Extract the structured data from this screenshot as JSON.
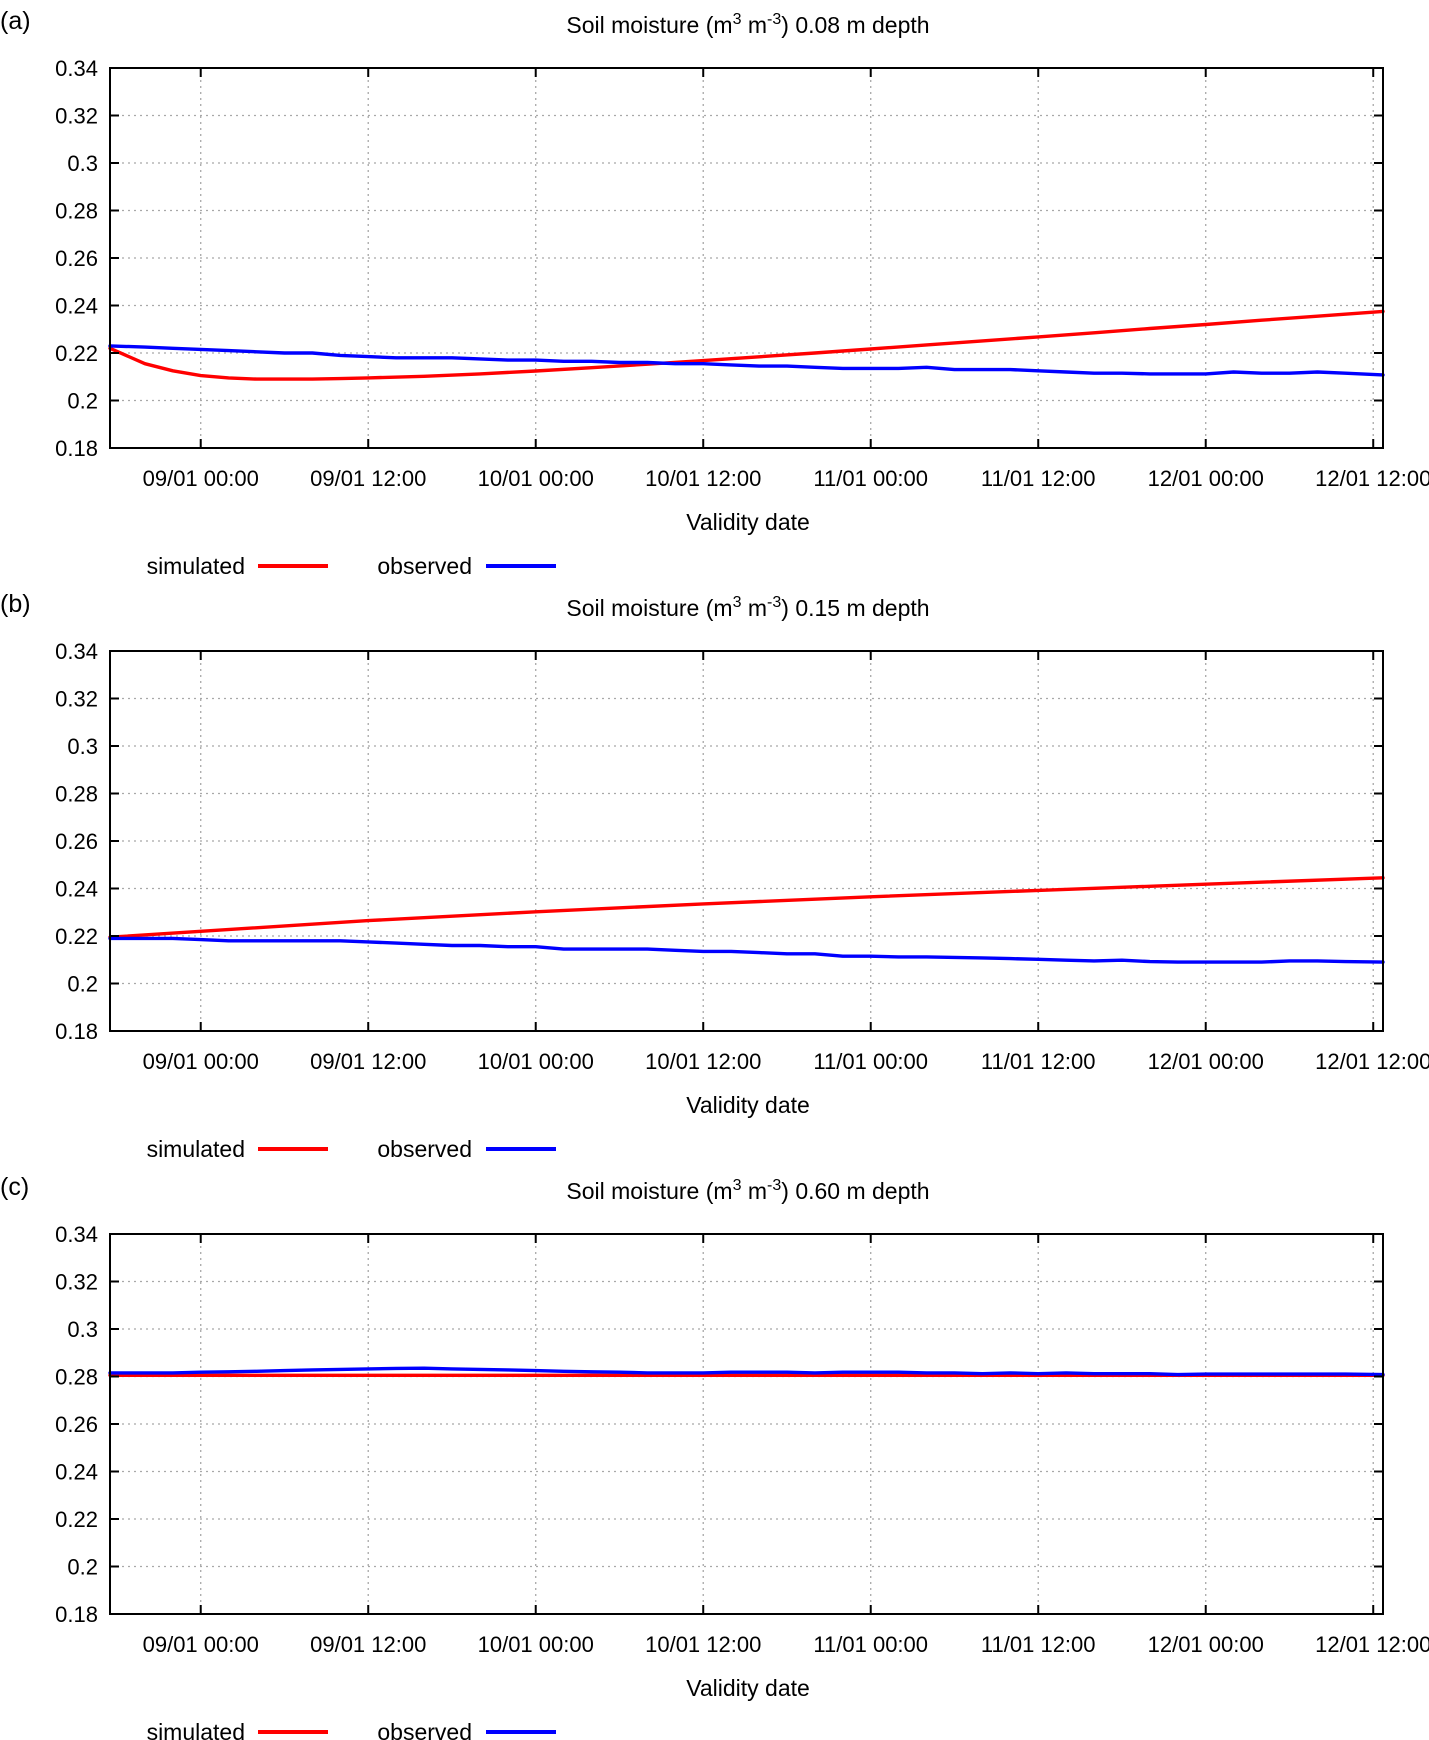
{
  "chart_data": [
    {
      "type": "line",
      "panel_label": "(a)",
      "title": "Soil moisture (m3 m-3) 0.08 m depth",
      "title_parts": {
        "prefix": "Soil moisture (m",
        "sup1": "3",
        "middle": " m",
        "sup2": "-3",
        "suffix": ") 0.08 m depth"
      },
      "xlabel": "Validity date",
      "ylabel": "",
      "x_ticks": [
        "09/01 00:00",
        "09/01 12:00",
        "10/01 00:00",
        "10/01 12:00",
        "11/01 00:00",
        "11/01 12:00",
        "12/01 00:00",
        "12/01 12:00"
      ],
      "y_ticks": [
        "0.34",
        "0.32",
        "0.3",
        "0.28",
        "0.26",
        "0.24",
        "0.22",
        "0.2",
        "0.18"
      ],
      "ylim": [
        0.18,
        0.34
      ],
      "xlim_hours": [
        -6.5,
        84.7
      ],
      "grid": true,
      "legend_position": "bottom-left",
      "series": [
        {
          "name": "simulated",
          "color": "#ff0000",
          "x": [
            -6.5,
            -4,
            -2,
            0,
            2,
            4,
            6,
            8,
            10,
            12,
            16,
            20,
            24,
            28,
            32,
            36,
            40,
            44,
            48,
            52,
            56,
            60,
            64,
            68,
            72,
            76,
            80,
            84.7
          ],
          "y": [
            0.222,
            0.2155,
            0.2125,
            0.2105,
            0.2095,
            0.209,
            0.209,
            0.209,
            0.2092,
            0.2095,
            0.2102,
            0.2112,
            0.2124,
            0.2138,
            0.2153,
            0.2168,
            0.2184,
            0.22,
            0.2217,
            0.2234,
            0.2251,
            0.2268,
            0.2285,
            0.2303,
            0.232,
            0.2338,
            0.2355,
            0.2375
          ]
        },
        {
          "name": "observed",
          "color": "#0000ff",
          "x": [
            -6.5,
            -4,
            -2,
            0,
            2,
            4,
            6,
            8,
            10,
            12,
            14,
            16,
            18,
            20,
            22,
            24,
            26,
            28,
            30,
            32,
            34,
            36,
            38,
            40,
            42,
            44,
            46,
            48,
            50,
            52,
            54,
            56,
            58,
            60,
            62,
            64,
            66,
            68,
            70,
            72,
            74,
            76,
            78,
            80,
            82,
            84.7
          ],
          "y": [
            0.223,
            0.2225,
            0.222,
            0.2215,
            0.221,
            0.2205,
            0.22,
            0.22,
            0.219,
            0.2185,
            0.218,
            0.218,
            0.218,
            0.2175,
            0.217,
            0.217,
            0.2165,
            0.2165,
            0.216,
            0.216,
            0.2155,
            0.2155,
            0.215,
            0.2145,
            0.2145,
            0.214,
            0.2135,
            0.2135,
            0.2135,
            0.214,
            0.213,
            0.213,
            0.213,
            0.2125,
            0.212,
            0.2115,
            0.2115,
            0.2112,
            0.2112,
            0.2112,
            0.212,
            0.2115,
            0.2115,
            0.212,
            0.2115,
            0.2108
          ]
        }
      ]
    },
    {
      "type": "line",
      "panel_label": "(b)",
      "title": "Soil moisture (m3 m-3) 0.15 m depth",
      "title_parts": {
        "prefix": "Soil moisture (m",
        "sup1": "3",
        "middle": " m",
        "sup2": "-3",
        "suffix": ") 0.15 m depth"
      },
      "xlabel": "Validity date",
      "ylabel": "",
      "x_ticks": [
        "09/01 00:00",
        "09/01 12:00",
        "10/01 00:00",
        "10/01 12:00",
        "11/01 00:00",
        "11/01 12:00",
        "12/01 00:00",
        "12/01 12:00"
      ],
      "y_ticks": [
        "0.34",
        "0.32",
        "0.3",
        "0.28",
        "0.26",
        "0.24",
        "0.22",
        "0.2",
        "0.18"
      ],
      "ylim": [
        0.18,
        0.34
      ],
      "xlim_hours": [
        -6.5,
        84.7
      ],
      "grid": true,
      "legend_position": "bottom-left",
      "series": [
        {
          "name": "simulated",
          "color": "#ff0000",
          "x": [
            -6.5,
            0,
            12,
            24,
            36,
            48,
            60,
            72,
            84.7
          ],
          "y": [
            0.2195,
            0.222,
            0.2265,
            0.2302,
            0.2335,
            0.2365,
            0.2392,
            0.2418,
            0.2445
          ]
        },
        {
          "name": "observed",
          "color": "#0000ff",
          "x": [
            -6.5,
            -4,
            -2,
            0,
            2,
            4,
            6,
            8,
            10,
            12,
            14,
            16,
            18,
            20,
            22,
            24,
            26,
            28,
            30,
            32,
            34,
            36,
            38,
            40,
            42,
            44,
            46,
            48,
            50,
            52,
            54,
            56,
            58,
            60,
            62,
            64,
            66,
            68,
            70,
            72,
            74,
            76,
            78,
            80,
            82,
            84.7
          ],
          "y": [
            0.219,
            0.219,
            0.219,
            0.2185,
            0.218,
            0.218,
            0.218,
            0.218,
            0.218,
            0.2175,
            0.217,
            0.2165,
            0.216,
            0.216,
            0.2155,
            0.2155,
            0.2145,
            0.2145,
            0.2145,
            0.2145,
            0.214,
            0.2135,
            0.2135,
            0.213,
            0.2125,
            0.2125,
            0.2115,
            0.2115,
            0.2112,
            0.2112,
            0.211,
            0.2108,
            0.2105,
            0.2102,
            0.2098,
            0.2095,
            0.2098,
            0.2092,
            0.209,
            0.209,
            0.209,
            0.209,
            0.2095,
            0.2095,
            0.2092,
            0.209
          ]
        }
      ]
    },
    {
      "type": "line",
      "panel_label": "(c)",
      "title": "Soil moisture (m3 m-3) 0.60 m depth",
      "title_parts": {
        "prefix": "Soil moisture (m",
        "sup1": "3",
        "middle": " m",
        "sup2": "-3",
        "suffix": ") 0.60 m depth"
      },
      "xlabel": "Validity date",
      "ylabel": "",
      "x_ticks": [
        "09/01 00:00",
        "09/01 12:00",
        "10/01 00:00",
        "10/01 12:00",
        "11/01 00:00",
        "11/01 12:00",
        "12/01 00:00",
        "12/01 12:00"
      ],
      "y_ticks": [
        "0.34",
        "0.32",
        "0.3",
        "0.28",
        "0.26",
        "0.24",
        "0.22",
        "0.2",
        "0.18"
      ],
      "ylim": [
        0.18,
        0.34
      ],
      "xlim_hours": [
        -6.5,
        84.7
      ],
      "grid": true,
      "legend_position": "bottom-left",
      "series": [
        {
          "name": "simulated",
          "color": "#ff0000",
          "x": [
            -6.5,
            0,
            12,
            24,
            36,
            48,
            60,
            72,
            84.7
          ],
          "y": [
            0.2805,
            0.2805,
            0.2805,
            0.2805,
            0.2805,
            0.2805,
            0.2805,
            0.2805,
            0.2805
          ]
        },
        {
          "name": "observed",
          "color": "#0000ff",
          "x": [
            -6.5,
            -4,
            -2,
            0,
            2,
            4,
            6,
            8,
            10,
            12,
            14,
            16,
            18,
            20,
            22,
            24,
            26,
            28,
            30,
            32,
            34,
            36,
            38,
            40,
            42,
            44,
            46,
            48,
            50,
            52,
            54,
            56,
            58,
            60,
            62,
            64,
            66,
            68,
            70,
            72,
            74,
            76,
            78,
            80,
            82,
            84.7
          ],
          "y": [
            0.2815,
            0.2815,
            0.2815,
            0.2818,
            0.282,
            0.2822,
            0.2825,
            0.2828,
            0.283,
            0.2832,
            0.2834,
            0.2835,
            0.2832,
            0.283,
            0.2828,
            0.2825,
            0.2822,
            0.282,
            0.2818,
            0.2815,
            0.2815,
            0.2815,
            0.2818,
            0.2818,
            0.2818,
            0.2815,
            0.2818,
            0.2818,
            0.2818,
            0.2815,
            0.2815,
            0.2812,
            0.2815,
            0.2812,
            0.2815,
            0.2812,
            0.2812,
            0.2812,
            0.2808,
            0.281,
            0.281,
            0.281,
            0.281,
            0.281,
            0.281,
            0.2808
          ]
        }
      ]
    }
  ]
}
